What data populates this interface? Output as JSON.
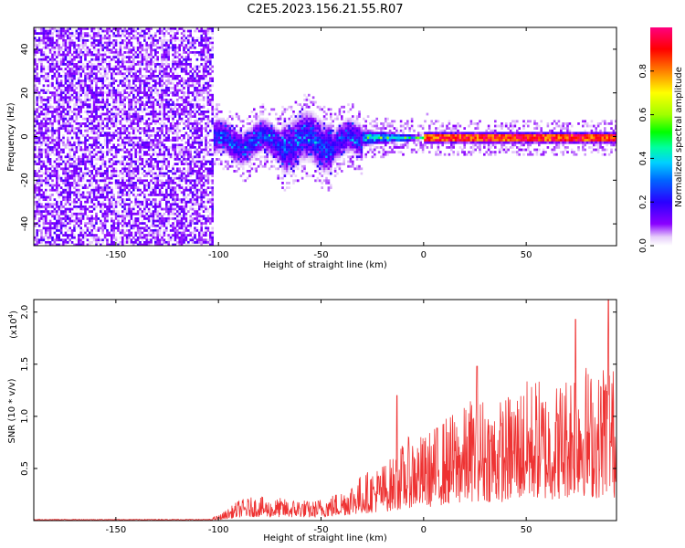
{
  "figure_title": "C2E5.2023.156.21.55.R07",
  "chart_data": [
    {
      "type": "heatmap",
      "title": "C2E5.2023.156.21.55.R07",
      "xlabel": "Height of straight line (km)",
      "ylabel": "Frequency (Hz)",
      "xlim": [
        -190,
        94
      ],
      "ylim": [
        -50,
        50
      ],
      "x_ticks": [
        -150,
        -100,
        -50,
        0,
        50
      ],
      "y_ticks": [
        -40,
        -20,
        0,
        20,
        40
      ],
      "colorbar": {
        "label": "Normalized spectral amplitude",
        "range": [
          0.0,
          1.0
        ],
        "ticks": [
          0.0,
          0.2,
          0.4,
          0.6,
          0.8
        ],
        "colors": [
          "#ffffff",
          "#e6cdfa",
          "#7a00ff",
          "#2a00ff",
          "#0040ff",
          "#00c8ff",
          "#00ffa0",
          "#00ff00",
          "#a0ff00",
          "#ffff00",
          "#ff8000",
          "#ff0000",
          "#ff0080"
        ]
      },
      "regions": [
        {
          "x_range": [
            -190,
            -103
          ],
          "freq_range": [
            -50,
            50
          ],
          "amplitude": 0.06,
          "description": "noise"
        },
        {
          "x_range": [
            -103,
            -30
          ],
          "freq_center": -2,
          "freq_halfwidth": 9,
          "amplitude": 0.35
        },
        {
          "x_range": [
            -30,
            0
          ],
          "freq_center": 0,
          "freq_halfwidth": 4,
          "amplitude": 0.6
        },
        {
          "x_range": [
            0,
            94
          ],
          "freq_center": 0,
          "freq_halfwidth": 3,
          "amplitude": 0.85
        }
      ]
    },
    {
      "type": "line",
      "xlabel": "Height of straight line (km)",
      "ylabel": "SNR (10 * v/v)",
      "scale_label": "(x10",
      "scale_exp": "4",
      "scale_close": ")",
      "xlim": [
        -190,
        94
      ],
      "ylim": [
        0,
        2.12
      ],
      "x_ticks": [
        -150,
        -100,
        -50,
        0,
        50
      ],
      "y_ticks": [
        0.5,
        1.0,
        1.5,
        2.0
      ],
      "y_tick_labels": [
        "0.5",
        "1.0",
        "1.5",
        "2.0"
      ],
      "series": [
        {
          "name": "SNR",
          "color": "#ee3333",
          "x": [
            -190,
            -150,
            -105,
            -100,
            -95,
            -90,
            -85,
            -80,
            -75,
            -70,
            -65,
            -60,
            -55,
            -50,
            -45,
            -40,
            -35,
            -30,
            -25,
            -20,
            -15,
            -10,
            -5,
            0,
            5,
            10,
            15,
            20,
            25,
            30,
            35,
            40,
            45,
            50,
            55,
            60,
            65,
            70,
            75,
            80,
            85,
            90,
            94
          ],
          "envelope_max": [
            0.01,
            0.01,
            0.02,
            0.05,
            0.12,
            0.2,
            0.22,
            0.24,
            0.2,
            0.22,
            0.2,
            0.22,
            0.18,
            0.22,
            0.25,
            0.3,
            0.38,
            0.45,
            0.5,
            0.55,
            0.62,
            0.75,
            0.85,
            0.82,
            0.9,
            1.0,
            1.05,
            1.1,
            1.25,
            1.2,
            1.15,
            1.2,
            1.3,
            1.35,
            1.4,
            1.3,
            1.35,
            1.45,
            1.7,
            1.5,
            1.4,
            1.8,
            1.3
          ],
          "peaks": [
            {
              "x": -13,
              "y": 1.2
            },
            {
              "x": 26,
              "y": 1.48
            },
            {
              "x": 74,
              "y": 1.93
            },
            {
              "x": 90,
              "y": 2.12
            }
          ]
        }
      ]
    }
  ]
}
